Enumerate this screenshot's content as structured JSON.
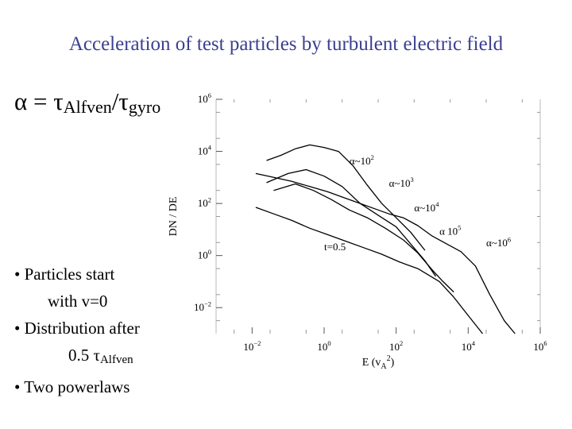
{
  "slide": {
    "title": "Acceleration of test particles by turbulent electric field",
    "alpha_symbol": "α",
    "equals": " = ",
    "tau1": "τ",
    "alfven_sub": "Alfven",
    "slash": "/",
    "tau2": "τ",
    "gyro_sub": "gyro"
  },
  "bullets": {
    "b1": "• Particles start",
    "b1_cont": "with v=0",
    "b2": "• Distribution after",
    "b2_cont_value": "0.5 ",
    "b2_cont_tau": "τ",
    "b2_cont_sub": "Alfven",
    "b3": "• Two powerlaws"
  },
  "chart_data": {
    "type": "line",
    "scale": "log-log",
    "xlabel": "E (v",
    "xlabel_sub": "A",
    "xlabel_sup": "2",
    "xlabel_close": ")",
    "ylabel": "DN / DE",
    "xlim_exp": [
      -3,
      6
    ],
    "ylim_exp": [
      -3,
      6
    ],
    "x_ticks": [
      {
        "base": "10",
        "exp": "−2",
        "value_exp": -2
      },
      {
        "base": "10",
        "exp": "0",
        "value_exp": 0
      },
      {
        "base": "10",
        "exp": "2",
        "value_exp": 2
      },
      {
        "base": "10",
        "exp": "4",
        "value_exp": 4
      },
      {
        "base": "10",
        "exp": "6",
        "value_exp": 6
      }
    ],
    "y_ticks": [
      {
        "base": "10",
        "exp": "6",
        "value_exp": 6
      },
      {
        "base": "10",
        "exp": "4",
        "value_exp": 4
      },
      {
        "base": "10",
        "exp": "2",
        "value_exp": 2
      },
      {
        "base": "10",
        "exp": "0",
        "value_exp": 0
      },
      {
        "base": "10",
        "exp": "−2",
        "value_exp": -2
      }
    ],
    "annotation": {
      "text": "t=0.5",
      "log_x": 0.0,
      "log_y": 0.2
    },
    "series": [
      {
        "name": "α~10²",
        "label_prefix": "α~10",
        "label_exp": "2",
        "label_log": [
          0.7,
          3.5
        ],
        "points_log": [
          [
            -1.6,
            3.65
          ],
          [
            -1.2,
            3.85
          ],
          [
            -0.8,
            4.1
          ],
          [
            -0.4,
            4.25
          ],
          [
            0.0,
            4.15
          ],
          [
            0.4,
            4.0
          ],
          [
            0.8,
            3.45
          ],
          [
            1.2,
            2.7
          ],
          [
            1.6,
            2.0
          ],
          [
            2.0,
            1.45
          ],
          [
            2.4,
            0.9
          ],
          [
            2.8,
            0.2
          ]
        ]
      },
      {
        "name": "α~10³",
        "label_prefix": "α~10",
        "label_exp": "3",
        "label_log": [
          1.8,
          2.65
        ],
        "points_log": [
          [
            -1.6,
            2.8
          ],
          [
            -1.0,
            3.15
          ],
          [
            -0.5,
            3.3
          ],
          [
            0.0,
            3.05
          ],
          [
            0.5,
            2.65
          ],
          [
            1.0,
            2.0
          ],
          [
            1.5,
            1.55
          ],
          [
            2.0,
            1.1
          ],
          [
            2.4,
            0.45
          ],
          [
            2.8,
            -0.2
          ],
          [
            3.1,
            -0.8
          ]
        ]
      },
      {
        "name": "α~10⁴",
        "label_prefix": "α~10",
        "label_exp": "4",
        "label_log": [
          2.5,
          1.7
        ],
        "points_log": [
          [
            -1.4,
            2.5
          ],
          [
            -0.8,
            2.75
          ],
          [
            -0.3,
            2.5
          ],
          [
            0.2,
            2.15
          ],
          [
            0.7,
            1.75
          ],
          [
            1.2,
            1.45
          ],
          [
            1.7,
            1.05
          ],
          [
            2.2,
            0.6
          ],
          [
            2.6,
            0.1
          ],
          [
            3.0,
            -0.55
          ],
          [
            3.3,
            -1.0
          ],
          [
            3.6,
            -1.4
          ]
        ]
      },
      {
        "name": "α~10⁵",
        "label_prefix": "α 10",
        "label_exp": "5",
        "label_log": [
          3.2,
          0.8
        ],
        "points_log": [
          [
            -1.9,
            1.85
          ],
          [
            -1.4,
            1.6
          ],
          [
            -0.9,
            1.35
          ],
          [
            -0.4,
            1.05
          ],
          [
            0.1,
            0.8
          ],
          [
            0.6,
            0.55
          ],
          [
            1.1,
            0.3
          ],
          [
            1.6,
            0.05
          ],
          [
            2.1,
            -0.25
          ],
          [
            2.6,
            -0.5
          ],
          [
            3.2,
            -1.0
          ],
          [
            3.6,
            -1.6
          ],
          [
            4.0,
            -2.3
          ],
          [
            4.4,
            -3.0
          ]
        ]
      },
      {
        "name": "α~10⁶",
        "label_prefix": "α~10",
        "label_exp": "6",
        "label_log": [
          4.5,
          0.35
        ],
        "points_log": [
          [
            -1.9,
            3.15
          ],
          [
            -1.4,
            3.0
          ],
          [
            -0.9,
            2.85
          ],
          [
            -0.4,
            2.65
          ],
          [
            0.1,
            2.45
          ],
          [
            0.6,
            2.2
          ],
          [
            1.0,
            2.0
          ],
          [
            1.4,
            1.8
          ],
          [
            1.8,
            1.6
          ],
          [
            2.2,
            1.45
          ],
          [
            2.6,
            1.15
          ],
          [
            3.0,
            0.75
          ],
          [
            3.4,
            0.45
          ],
          [
            3.8,
            0.15
          ],
          [
            4.2,
            -0.4
          ],
          [
            4.6,
            -1.5
          ],
          [
            5.0,
            -2.5
          ],
          [
            5.3,
            -3.0
          ]
        ]
      }
    ]
  }
}
